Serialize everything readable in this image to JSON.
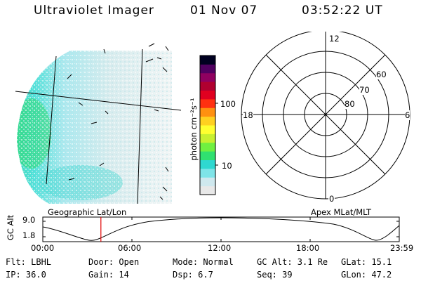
{
  "header": {
    "title": "Ultraviolet Imager",
    "date": "01 Nov 07",
    "time": "03:52:22 UT"
  },
  "colorbar": {
    "unit_label": "photon cm⁻²s⁻¹",
    "ticks": [
      "100",
      "10"
    ],
    "colors": [
      "#e8e8e8",
      "#cfe8ee",
      "#7fe4e8",
      "#2fd8d0",
      "#30e070",
      "#70f040",
      "#c8f030",
      "#ffff30",
      "#ffd020",
      "#ff9010",
      "#ff3010",
      "#e00020",
      "#b00030",
      "#900060",
      "#500060",
      "#000020"
    ]
  },
  "polar": {
    "mlt_labels": {
      "top": "12",
      "left": "18",
      "right": "6",
      "bottom": "0"
    },
    "lat_labels": [
      "60",
      "70",
      "80"
    ]
  },
  "timeline": {
    "left_label": "Geographic Lat/Lon",
    "right_label": "Apex MLat/MLT",
    "axis_label": "GC Alt",
    "y_ticks": [
      "9.0",
      "1.8"
    ],
    "x_ticks": [
      "00:00",
      "06:00",
      "12:00",
      "18:00",
      "23:59"
    ],
    "current_time_fraction": 0.163
  },
  "info": {
    "row1": {
      "filter": "Flt: LBHL",
      "door": "Door: Open",
      "mode": "Mode: Normal",
      "gc_alt": "GC Alt: 3.1 Re",
      "glat": "GLat:  15.1"
    },
    "row2": {
      "ip": "IP: 36.0",
      "gain": "Gain: 14",
      "dsp": "Dsp:    6.7",
      "seq": "Seq: 39",
      "glon": "GLon:  47.2"
    }
  }
}
